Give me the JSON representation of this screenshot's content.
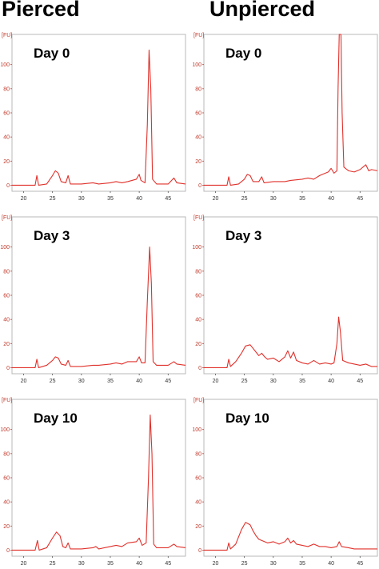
{
  "titles": {
    "left": "Pierced",
    "right": "Unpierced"
  },
  "chart_data": [
    {
      "type": "line",
      "title": "Day 0",
      "group": "Pierced",
      "ylabel": "[FU]",
      "xlim": [
        18,
        48
      ],
      "ylim": [
        -5,
        125
      ],
      "yticks": [
        0,
        20,
        40,
        60,
        80,
        100
      ],
      "xticks": [
        20,
        25,
        30,
        35,
        40,
        45
      ],
      "series": [
        {
          "points": [
            [
              18,
              0
            ],
            [
              20,
              0
            ],
            [
              22,
              0
            ],
            [
              22.3,
              8
            ],
            [
              22.6,
              0
            ],
            [
              24,
              1
            ],
            [
              25,
              8
            ],
            [
              25.5,
              12
            ],
            [
              26,
              10
            ],
            [
              26.5,
              3
            ],
            [
              27.3,
              2
            ],
            [
              27.7,
              8
            ],
            [
              28.1,
              1
            ],
            [
              30,
              1
            ],
            [
              32,
              2
            ],
            [
              33,
              1
            ],
            [
              35,
              2
            ],
            [
              36,
              3
            ],
            [
              37,
              2
            ],
            [
              38,
              3
            ],
            [
              39.5,
              5
            ],
            [
              40,
              9
            ],
            [
              40.3,
              4
            ],
            [
              41,
              2
            ],
            [
              41.4,
              50
            ],
            [
              41.7,
              112
            ],
            [
              42,
              80
            ],
            [
              42.3,
              5
            ],
            [
              43,
              1
            ],
            [
              45,
              1
            ],
            [
              46,
              6
            ],
            [
              46.5,
              2
            ],
            [
              48,
              1
            ]
          ]
        }
      ]
    },
    {
      "type": "line",
      "title": "Day 0",
      "group": "Unpierced",
      "ylabel": "[FU]",
      "xlim": [
        18,
        48
      ],
      "ylim": [
        -5,
        125
      ],
      "yticks": [
        0,
        20,
        40,
        60,
        80,
        100
      ],
      "xticks": [
        20,
        25,
        30,
        35,
        40,
        45
      ],
      "series": [
        {
          "points": [
            [
              18,
              0
            ],
            [
              20,
              0
            ],
            [
              22,
              0
            ],
            [
              22.3,
              7
            ],
            [
              22.6,
              0
            ],
            [
              24,
              1
            ],
            [
              25,
              5
            ],
            [
              25.5,
              9
            ],
            [
              26,
              8
            ],
            [
              26.5,
              3
            ],
            [
              27.5,
              3
            ],
            [
              28,
              7
            ],
            [
              28.4,
              2
            ],
            [
              30,
              3
            ],
            [
              32,
              3
            ],
            [
              33,
              4
            ],
            [
              35,
              5
            ],
            [
              36,
              6
            ],
            [
              37,
              5
            ],
            [
              38,
              8
            ],
            [
              39.5,
              11
            ],
            [
              40,
              14
            ],
            [
              40.5,
              10
            ],
            [
              41,
              12
            ],
            [
              41.2,
              80
            ],
            [
              41.4,
              125
            ],
            [
              41.7,
              125
            ],
            [
              41.9,
              60
            ],
            [
              42.2,
              15
            ],
            [
              43,
              12
            ],
            [
              44,
              11
            ],
            [
              45,
              13
            ],
            [
              46,
              17
            ],
            [
              46.5,
              12
            ],
            [
              47,
              13
            ],
            [
              48,
              12
            ]
          ]
        }
      ]
    },
    {
      "type": "line",
      "title": "Day 3",
      "group": "Pierced",
      "ylabel": "[FU]",
      "xlim": [
        18,
        48
      ],
      "ylim": [
        -5,
        125
      ],
      "yticks": [
        0,
        20,
        40,
        60,
        80,
        100
      ],
      "xticks": [
        20,
        25,
        30,
        35,
        40,
        45
      ],
      "series": [
        {
          "points": [
            [
              18,
              0
            ],
            [
              20,
              0
            ],
            [
              22,
              0
            ],
            [
              22.3,
              7
            ],
            [
              22.6,
              0
            ],
            [
              24,
              2
            ],
            [
              25,
              6
            ],
            [
              25.5,
              9
            ],
            [
              26,
              8
            ],
            [
              26.5,
              3
            ],
            [
              27.3,
              2
            ],
            [
              27.7,
              6
            ],
            [
              28.1,
              1
            ],
            [
              30,
              1
            ],
            [
              32,
              2
            ],
            [
              33,
              2
            ],
            [
              35,
              3
            ],
            [
              36,
              4
            ],
            [
              37,
              3
            ],
            [
              38,
              5
            ],
            [
              39.5,
              5
            ],
            [
              40,
              9
            ],
            [
              40.4,
              4
            ],
            [
              41,
              4
            ],
            [
              41.4,
              55
            ],
            [
              41.8,
              100
            ],
            [
              42.1,
              70
            ],
            [
              42.4,
              5
            ],
            [
              43,
              2
            ],
            [
              44,
              2
            ],
            [
              45,
              2
            ],
            [
              46,
              5
            ],
            [
              46.5,
              3
            ],
            [
              48,
              2
            ]
          ]
        }
      ]
    },
    {
      "type": "line",
      "title": "Day 3",
      "group": "Unpierced",
      "ylabel": "[FU]",
      "xlim": [
        18,
        48
      ],
      "ylim": [
        -5,
        125
      ],
      "yticks": [
        0,
        20,
        40,
        60,
        80,
        100
      ],
      "xticks": [
        20,
        25,
        30,
        35,
        40,
        45
      ],
      "series": [
        {
          "points": [
            [
              18,
              0
            ],
            [
              20,
              0
            ],
            [
              22,
              0
            ],
            [
              22.3,
              7
            ],
            [
              22.6,
              1
            ],
            [
              23.5,
              5
            ],
            [
              24.5,
              12
            ],
            [
              25.2,
              18
            ],
            [
              26,
              19
            ],
            [
              26.5,
              16
            ],
            [
              27,
              13
            ],
            [
              27.5,
              10
            ],
            [
              28,
              12
            ],
            [
              28.5,
              9
            ],
            [
              29,
              7
            ],
            [
              30,
              8
            ],
            [
              31,
              5
            ],
            [
              32,
              9
            ],
            [
              32.5,
              14
            ],
            [
              33,
              8
            ],
            [
              33.5,
              13
            ],
            [
              34,
              6
            ],
            [
              35,
              4
            ],
            [
              36,
              3
            ],
            [
              37,
              6
            ],
            [
              38,
              3
            ],
            [
              39,
              4
            ],
            [
              40,
              3
            ],
            [
              40.5,
              4
            ],
            [
              41,
              20
            ],
            [
              41.3,
              42
            ],
            [
              41.6,
              30
            ],
            [
              42,
              6
            ],
            [
              43,
              4
            ],
            [
              44,
              3
            ],
            [
              45,
              2
            ],
            [
              46,
              3
            ],
            [
              47,
              1
            ],
            [
              48,
              1
            ]
          ]
        }
      ]
    },
    {
      "type": "line",
      "title": "Day 10",
      "group": "Pierced",
      "ylabel": "[FU]",
      "xlim": [
        18,
        48
      ],
      "ylim": [
        -5,
        125
      ],
      "yticks": [
        0,
        20,
        40,
        60,
        80,
        100
      ],
      "xticks": [
        20,
        25,
        30,
        35,
        40,
        45
      ],
      "series": [
        {
          "points": [
            [
              18,
              0
            ],
            [
              20,
              0
            ],
            [
              22,
              0
            ],
            [
              22.4,
              8
            ],
            [
              22.7,
              0
            ],
            [
              24,
              2
            ],
            [
              25,
              10
            ],
            [
              25.7,
              15
            ],
            [
              26.3,
              12
            ],
            [
              26.8,
              3
            ],
            [
              27.3,
              2
            ],
            [
              27.7,
              6
            ],
            [
              28.1,
              1
            ],
            [
              30,
              1
            ],
            [
              32,
              2
            ],
            [
              32.5,
              3
            ],
            [
              33,
              1
            ],
            [
              35,
              3
            ],
            [
              36,
              4
            ],
            [
              37,
              3
            ],
            [
              38,
              6
            ],
            [
              39.5,
              7
            ],
            [
              40,
              10
            ],
            [
              40.5,
              4
            ],
            [
              41.2,
              6
            ],
            [
              41.6,
              60
            ],
            [
              41.9,
              112
            ],
            [
              42.2,
              80
            ],
            [
              42.5,
              5
            ],
            [
              43,
              2
            ],
            [
              44,
              2
            ],
            [
              45,
              2
            ],
            [
              46,
              5
            ],
            [
              46.5,
              3
            ],
            [
              48,
              2
            ]
          ]
        }
      ]
    },
    {
      "type": "line",
      "title": "Day 10",
      "group": "Unpierced",
      "ylabel": "[FU]",
      "xlim": [
        18,
        48
      ],
      "ylim": [
        -5,
        125
      ],
      "yticks": [
        0,
        20,
        40,
        60,
        80,
        100
      ],
      "xticks": [
        20,
        25,
        30,
        35,
        40,
        45
      ],
      "series": [
        {
          "points": [
            [
              18,
              0
            ],
            [
              20,
              0
            ],
            [
              22,
              0
            ],
            [
              22.3,
              6
            ],
            [
              22.6,
              1
            ],
            [
              23.5,
              5
            ],
            [
              24.5,
              17
            ],
            [
              25.2,
              23
            ],
            [
              26,
              21
            ],
            [
              26.5,
              16
            ],
            [
              27,
              12
            ],
            [
              27.5,
              9
            ],
            [
              28,
              8
            ],
            [
              29,
              6
            ],
            [
              30,
              7
            ],
            [
              31,
              5
            ],
            [
              32,
              7
            ],
            [
              32.5,
              10
            ],
            [
              33,
              6
            ],
            [
              33.5,
              8
            ],
            [
              34,
              5
            ],
            [
              35,
              4
            ],
            [
              36,
              3
            ],
            [
              37,
              5
            ],
            [
              38,
              3
            ],
            [
              39,
              3
            ],
            [
              40,
              2
            ],
            [
              41,
              3
            ],
            [
              41.4,
              7
            ],
            [
              41.8,
              3
            ],
            [
              43,
              2
            ],
            [
              44,
              1
            ],
            [
              46,
              1
            ],
            [
              48,
              1
            ]
          ]
        }
      ]
    }
  ]
}
